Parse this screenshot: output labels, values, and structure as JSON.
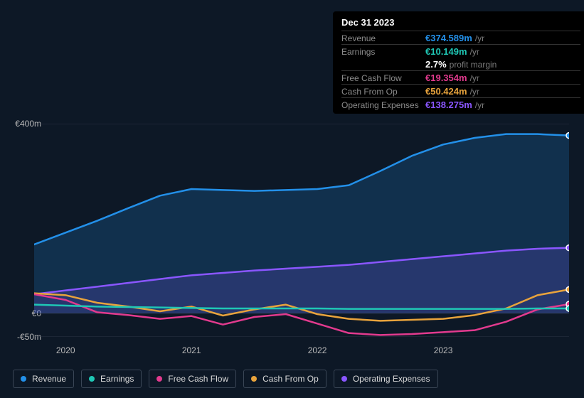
{
  "tooltip": {
    "title": "Dec 31 2023",
    "rows": [
      {
        "label": "Revenue",
        "value": "€374.589m",
        "unit": "/yr",
        "color": "#2390e9"
      },
      {
        "label": "Earnings",
        "value": "€10.149m",
        "unit": "/yr",
        "color": "#1fc7b5"
      },
      {
        "label": "",
        "value": "2.7%",
        "unit": "profit margin",
        "color": "#ffffff",
        "noborder": true
      },
      {
        "label": "Free Cash Flow",
        "value": "€19.354m",
        "unit": "/yr",
        "color": "#e23a8e"
      },
      {
        "label": "Cash From Op",
        "value": "€50.424m",
        "unit": "/yr",
        "color": "#e8a33c"
      },
      {
        "label": "Operating Expenses",
        "value": "€138.275m",
        "unit": "/yr",
        "color": "#8a56ff"
      }
    ]
  },
  "chart": {
    "type": "area",
    "background_color": "#0d1826",
    "grid_color": "#2a3544",
    "text_color": "#b8b8b8",
    "y_axis": {
      "min": -50,
      "max": 400,
      "ticks": [
        {
          "v": 400,
          "label": "€400m"
        },
        {
          "v": 0,
          "label": "€0"
        },
        {
          "v": -50,
          "label": "-€50m"
        }
      ]
    },
    "x_axis": {
      "min": 2019.75,
      "max": 2024.0,
      "ticks": [
        {
          "v": 2020,
          "label": "2020"
        },
        {
          "v": 2021,
          "label": "2021"
        },
        {
          "v": 2022,
          "label": "2022"
        },
        {
          "v": 2023,
          "label": "2023"
        }
      ]
    },
    "series": [
      {
        "name": "Revenue",
        "color": "#2390e9",
        "fill_opacity": 0.2,
        "line_width": 2.5,
        "data": [
          [
            2019.75,
            145
          ],
          [
            2020.0,
            170
          ],
          [
            2020.25,
            195
          ],
          [
            2020.5,
            222
          ],
          [
            2020.75,
            248
          ],
          [
            2021.0,
            262
          ],
          [
            2021.25,
            260
          ],
          [
            2021.5,
            258
          ],
          [
            2021.75,
            260
          ],
          [
            2022.0,
            262
          ],
          [
            2022.25,
            270
          ],
          [
            2022.5,
            300
          ],
          [
            2022.75,
            332
          ],
          [
            2023.0,
            356
          ],
          [
            2023.25,
            370
          ],
          [
            2023.5,
            378
          ],
          [
            2023.75,
            378
          ],
          [
            2024.0,
            375
          ]
        ]
      },
      {
        "name": "Operating Expenses",
        "color": "#8a56ff",
        "fill_opacity": 0.18,
        "line_width": 2.5,
        "data": [
          [
            2019.75,
            40
          ],
          [
            2020.0,
            48
          ],
          [
            2020.25,
            56
          ],
          [
            2020.5,
            64
          ],
          [
            2020.75,
            72
          ],
          [
            2021.0,
            80
          ],
          [
            2021.25,
            85
          ],
          [
            2021.5,
            90
          ],
          [
            2021.75,
            94
          ],
          [
            2022.0,
            98
          ],
          [
            2022.25,
            102
          ],
          [
            2022.5,
            108
          ],
          [
            2022.75,
            114
          ],
          [
            2023.0,
            120
          ],
          [
            2023.25,
            126
          ],
          [
            2023.5,
            132
          ],
          [
            2023.75,
            136
          ],
          [
            2024.0,
            138
          ]
        ]
      },
      {
        "name": "Cash From Op",
        "color": "#e8a33c",
        "fill_opacity": 0.0,
        "line_width": 2.5,
        "data": [
          [
            2019.75,
            42
          ],
          [
            2020.0,
            38
          ],
          [
            2020.25,
            22
          ],
          [
            2020.5,
            14
          ],
          [
            2020.75,
            4
          ],
          [
            2021.0,
            14
          ],
          [
            2021.25,
            -5
          ],
          [
            2021.5,
            8
          ],
          [
            2021.75,
            18
          ],
          [
            2022.0,
            -2
          ],
          [
            2022.25,
            -12
          ],
          [
            2022.5,
            -16
          ],
          [
            2022.75,
            -14
          ],
          [
            2023.0,
            -12
          ],
          [
            2023.25,
            -4
          ],
          [
            2023.5,
            10
          ],
          [
            2023.75,
            38
          ],
          [
            2024.0,
            50
          ]
        ]
      },
      {
        "name": "Free Cash Flow",
        "color": "#e23a8e",
        "fill_opacity": 0.0,
        "line_width": 2.5,
        "data": [
          [
            2019.75,
            40
          ],
          [
            2020.0,
            28
          ],
          [
            2020.25,
            2
          ],
          [
            2020.5,
            -4
          ],
          [
            2020.75,
            -12
          ],
          [
            2021.0,
            -6
          ],
          [
            2021.25,
            -24
          ],
          [
            2021.5,
            -8
          ],
          [
            2021.75,
            -2
          ],
          [
            2022.0,
            -22
          ],
          [
            2022.25,
            -42
          ],
          [
            2022.5,
            -46
          ],
          [
            2022.75,
            -44
          ],
          [
            2023.0,
            -40
          ],
          [
            2023.25,
            -36
          ],
          [
            2023.5,
            -18
          ],
          [
            2023.75,
            8
          ],
          [
            2024.0,
            19
          ]
        ]
      },
      {
        "name": "Earnings",
        "color": "#1fc7b5",
        "fill_opacity": 0.0,
        "line_width": 2.5,
        "data": [
          [
            2019.75,
            18
          ],
          [
            2020.0,
            16
          ],
          [
            2020.25,
            14
          ],
          [
            2020.5,
            13
          ],
          [
            2020.75,
            12
          ],
          [
            2021.0,
            11
          ],
          [
            2021.25,
            10
          ],
          [
            2021.5,
            10
          ],
          [
            2021.75,
            10
          ],
          [
            2022.0,
            10
          ],
          [
            2022.25,
            9
          ],
          [
            2022.5,
            9
          ],
          [
            2022.75,
            9
          ],
          [
            2023.0,
            9
          ],
          [
            2023.25,
            9
          ],
          [
            2023.5,
            9
          ],
          [
            2023.75,
            10
          ],
          [
            2024.0,
            10
          ]
        ]
      }
    ]
  },
  "legend": {
    "border_color": "#3a4656",
    "text_color": "#d9d9d9",
    "items": [
      {
        "label": "Revenue",
        "color": "#2390e9"
      },
      {
        "label": "Earnings",
        "color": "#1fc7b5"
      },
      {
        "label": "Free Cash Flow",
        "color": "#e23a8e"
      },
      {
        "label": "Cash From Op",
        "color": "#e8a33c"
      },
      {
        "label": "Operating Expenses",
        "color": "#8a56ff"
      }
    ]
  }
}
